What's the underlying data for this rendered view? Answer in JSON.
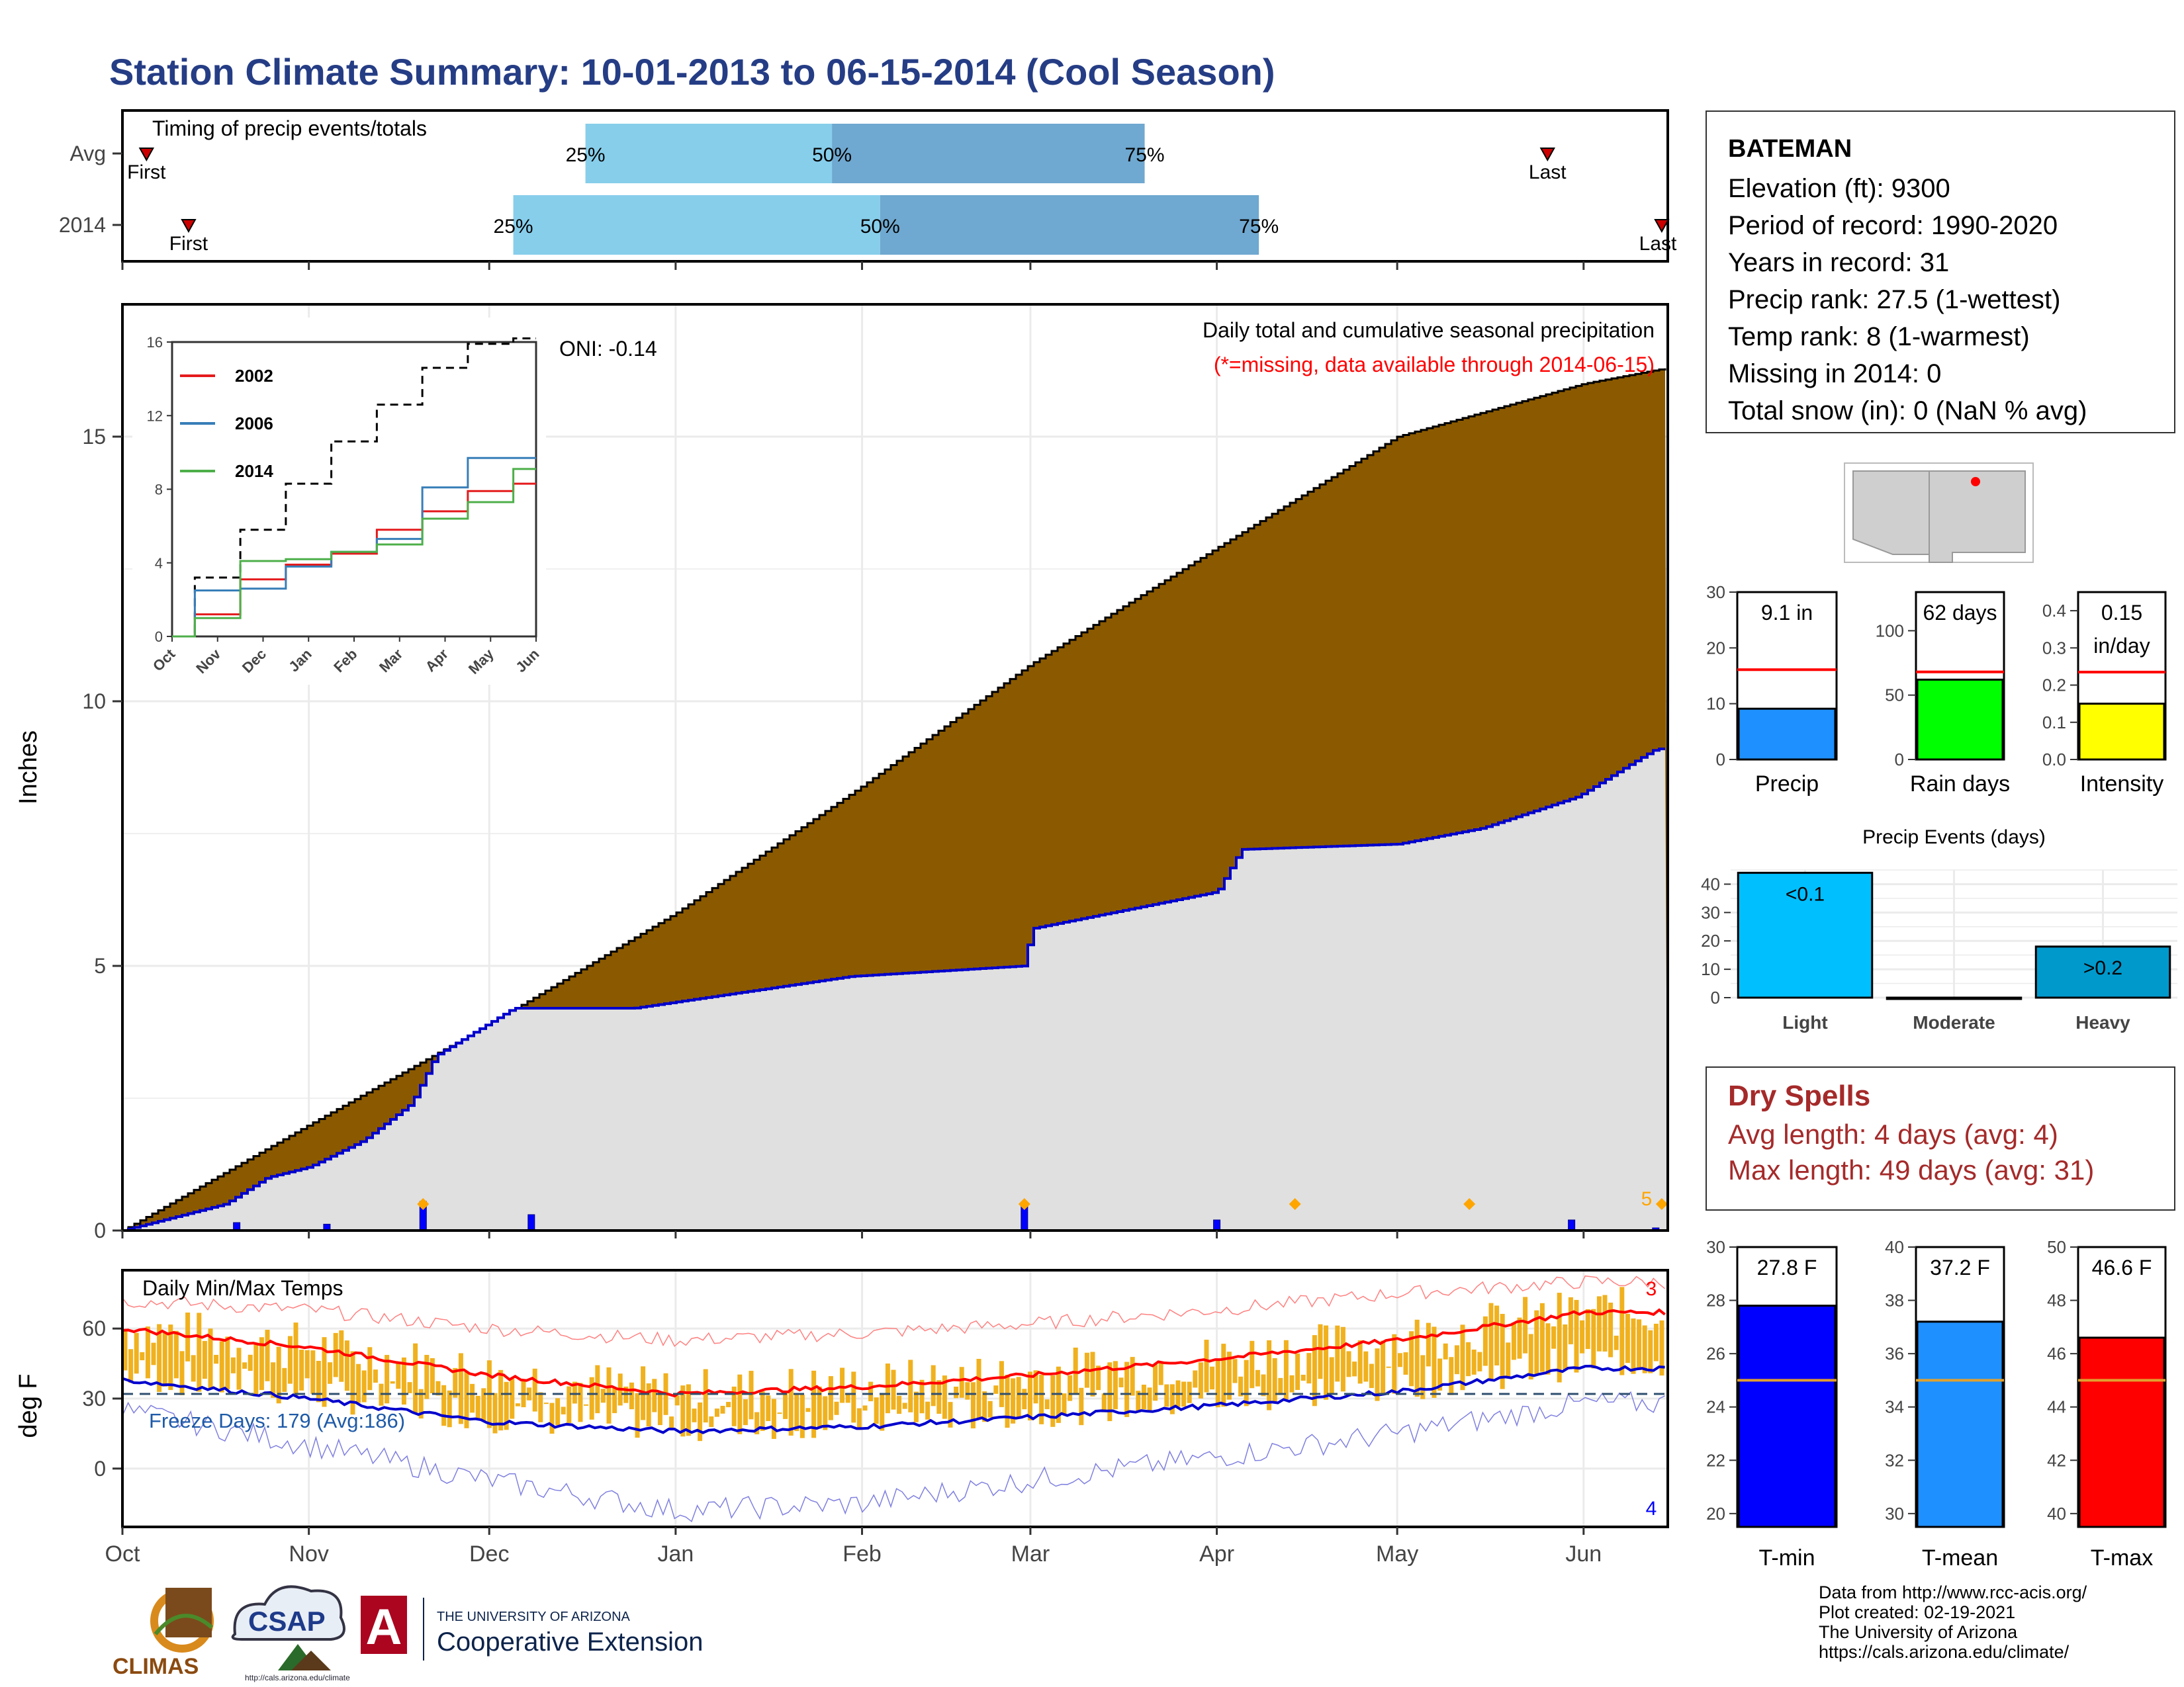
{
  "title": "Station Climate Summary: 10-01-2013 to 06-15-2014 (Cool Season)",
  "timing": {
    "label": "Timing of precip events/totals",
    "rows": [
      {
        "name": "Avg",
        "first": "2013-10-05",
        "p25": "2013-12-17",
        "p50": "2014-01-27",
        "p75": "2014-03-20",
        "last": "2014-05-26"
      },
      {
        "name": "2014",
        "first": "2013-10-12",
        "p25": "2013-12-05",
        "p50": "2014-02-04",
        "p75": "2014-04-08",
        "last": "2014-06-14"
      }
    ],
    "marker_labels": {
      "first": "First",
      "last": "Last",
      "p25": "25%",
      "p50": "50%",
      "p75": "75%"
    }
  },
  "main_panel": {
    "ylabel": "Inches",
    "annotation_title": "Daily total and cumulative seasonal precipitation",
    "annotation_missing": "(*=missing, data available through 2014-06-15)",
    "oni": "ONI: -0.14",
    "count_label": "5",
    "yticks": [
      "0",
      "5",
      "10",
      "15"
    ],
    "colors": {
      "avg_fill": "#8b5a00",
      "obs_fill": "#e0e0e0",
      "obs_line": "#0000cd",
      "bars": "#0000ff",
      "event": "#ffa500"
    }
  },
  "inset": {
    "xticks": [
      "Oct",
      "Nov",
      "Dec",
      "Jan",
      "Feb",
      "Mar",
      "Apr",
      "May",
      "Jun"
    ],
    "yticks": [
      "0",
      "4",
      "8",
      "12",
      "16"
    ],
    "legend": [
      {
        "name": "2002",
        "color": "#e41a1c"
      },
      {
        "name": "2006",
        "color": "#377eb8"
      },
      {
        "name": "2014",
        "color": "#4daf4a"
      }
    ]
  },
  "temp_panel": {
    "ylabel": "deg F",
    "title": "Daily Min/Max Temps",
    "freeze": "Freeze Days: 179 (Avg:186)",
    "count_top": "3",
    "count_bottom": "4",
    "yticks": [
      "0",
      "30",
      "60"
    ],
    "colors": {
      "bar": "#f0b11e",
      "max_avg": "#ff0000",
      "min_avg": "#0000cd",
      "max_rec": "#ff8080",
      "min_rec": "#8080e0"
    }
  },
  "x_months": [
    "Oct",
    "Nov",
    "Dec",
    "Jan",
    "Feb",
    "Mar",
    "Apr",
    "May",
    "Jun"
  ],
  "station": {
    "name": "BATEMAN",
    "lines": [
      "Elevation (ft): 9300",
      "Period of record: 1990-2020",
      "Years in record: 31",
      "Precip rank: 27.5 (1-wettest)",
      "Temp rank: 8 (1-warmest)",
      "Missing in 2014: 0",
      "Total snow (in): 0 (NaN % avg)"
    ]
  },
  "dry_spells": {
    "title": "Dry Spells",
    "avg": "Avg length: 4 days (avg: 4)",
    "max": "Max length: 49 days (avg: 31)",
    "color": "#a52a2a"
  },
  "precip_events_title": "Precip Events (days)",
  "footer": [
    "Data from http://www.rcc-acis.org/",
    "Plot created: 02-19-2021",
    "The University of Arizona",
    "https://cals.arizona.edu/climate/"
  ],
  "logos": {
    "climas": "CLIMAS",
    "csap": "CSAP",
    "csap_url": "http://cals.arizona.edu/climate",
    "ua_line1": "THE UNIVERSITY OF ARIZONA",
    "ua_line2": "Cooperative Extension",
    "ua_letter": "A"
  },
  "chart_data": [
    {
      "type": "area",
      "title": "Daily total and cumulative seasonal precipitation",
      "ylabel": "Inches",
      "ylim": [
        0,
        17.5
      ],
      "x_range": [
        "2013-10-01",
        "2014-06-15"
      ],
      "series": [
        {
          "name": "avg cumulative",
          "x": [
            "2013-10-01",
            "2013-11-01",
            "2013-12-01",
            "2014-01-01",
            "2014-02-01",
            "2014-03-01",
            "2014-04-01",
            "2014-05-01",
            "2014-06-01",
            "2014-06-15"
          ],
          "values": [
            0,
            2.0,
            3.9,
            6.0,
            8.4,
            10.7,
            12.9,
            15.0,
            16.0,
            16.3
          ]
        },
        {
          "name": "observed cumulative",
          "x": [
            "2013-10-01",
            "2013-10-18",
            "2013-10-25",
            "2013-11-01",
            "2013-11-10",
            "2013-11-18",
            "2013-11-22",
            "2013-12-05",
            "2013-12-25",
            "2014-01-30",
            "2014-02-28",
            "2014-03-01",
            "2014-04-01",
            "2014-04-05",
            "2014-05-01",
            "2014-05-15",
            "2014-05-31",
            "2014-06-10",
            "2014-06-13",
            "2014-06-15"
          ],
          "values": [
            0,
            0.5,
            1.0,
            1.2,
            1.7,
            2.4,
            3.3,
            4.2,
            4.2,
            4.8,
            5.0,
            5.7,
            6.4,
            7.2,
            7.3,
            7.6,
            8.2,
            8.9,
            9.1,
            9.1
          ]
        }
      ],
      "daily_bars": [
        {
          "x": "2013-10-20",
          "y": 0.15
        },
        {
          "x": "2013-11-04",
          "y": 0.12
        },
        {
          "x": "2013-11-20",
          "y": 0.55
        },
        {
          "x": "2013-12-08",
          "y": 0.3
        },
        {
          "x": "2014-02-28",
          "y": 0.5
        },
        {
          "x": "2014-04-01",
          "y": 0.2
        },
        {
          "x": "2014-05-30",
          "y": 0.2
        },
        {
          "x": "2014-06-13",
          "y": 0.05
        }
      ],
      "event_markers": [
        "2013-11-20",
        "2014-02-28",
        "2014-04-14",
        "2014-05-13",
        "2014-06-14"
      ]
    },
    {
      "type": "line",
      "title": "",
      "ylim": [
        0,
        16
      ],
      "x_range": [
        "2013-10-01",
        "2014-06-15"
      ],
      "series": [
        {
          "name": "avg",
          "values": [
            0,
            3.2,
            5.8,
            8.3,
            10.6,
            12.6,
            14.6,
            15.9,
            16.2
          ]
        },
        {
          "name": "2002",
          "values": [
            0,
            1.2,
            3.1,
            3.9,
            4.5,
            5.8,
            6.8,
            7.9,
            8.3
          ]
        },
        {
          "name": "2006",
          "values": [
            0,
            2.5,
            2.6,
            3.8,
            4.6,
            5.3,
            8.1,
            9.7,
            9.7
          ]
        },
        {
          "name": "2014",
          "values": [
            0,
            1.0,
            4.1,
            4.2,
            4.6,
            5.0,
            6.4,
            7.3,
            9.1
          ]
        }
      ],
      "categories": [
        "Oct",
        "Nov",
        "Dec",
        "Jan",
        "Feb",
        "Mar",
        "Apr",
        "May",
        "Jun"
      ]
    },
    {
      "type": "bar",
      "title": "Daily Min/Max Temps",
      "ylabel": "deg F",
      "ylim": [
        -25,
        85
      ],
      "avg_max": {
        "x": [
          "Oct",
          "Nov",
          "Dec",
          "Jan",
          "Feb",
          "Mar",
          "Apr",
          "May",
          "Jun"
        ],
        "values": [
          60,
          52,
          40,
          32,
          35,
          40,
          47,
          55,
          67
        ]
      },
      "avg_min": {
        "x": [
          "Oct",
          "Nov",
          "Dec",
          "Jan",
          "Feb",
          "Mar",
          "Apr",
          "May",
          "Jun"
        ],
        "values": [
          38,
          30,
          20,
          16,
          18,
          22,
          27,
          33,
          43
        ]
      },
      "record_max": {
        "x": [
          "Oct",
          "Nov",
          "Dec",
          "Jan",
          "Feb",
          "Mar",
          "Apr",
          "May",
          "Jun"
        ],
        "values": [
          72,
          68,
          60,
          55,
          58,
          62,
          68,
          75,
          80
        ]
      },
      "record_min": {
        "x": [
          "Oct",
          "Nov",
          "Dec",
          "Jan",
          "Feb",
          "Mar",
          "Apr",
          "May",
          "Jun"
        ],
        "values": [
          25,
          10,
          -5,
          -18,
          -15,
          -5,
          5,
          15,
          28
        ]
      },
      "freeze_line": 32
    },
    {
      "type": "bar",
      "title": "",
      "categories": [
        "Precip"
      ],
      "values": [
        9.1
      ],
      "average": 16.1,
      "ylim": [
        0,
        30
      ],
      "value_label": "9.1 in",
      "yticks": [
        "0",
        "10",
        "20",
        "30"
      ],
      "color": "#1e90ff"
    },
    {
      "type": "bar",
      "title": "",
      "categories": [
        "Rain days"
      ],
      "values": [
        62
      ],
      "average": 68,
      "ylim": [
        0,
        130
      ],
      "value_label": "62 days",
      "yticks": [
        "0",
        "50",
        "100"
      ],
      "color": "#00ff00"
    },
    {
      "type": "bar",
      "title": "",
      "categories": [
        "Intensity"
      ],
      "values": [
        0.15
      ],
      "average": 0.235,
      "ylim": [
        0,
        0.45
      ],
      "value_label": "0.15",
      "value_label2": "in/day",
      "yticks": [
        "0.0",
        "0.1",
        "0.2",
        "0.3",
        "0.4"
      ],
      "color": "#ffff00"
    },
    {
      "type": "bar",
      "title": "Precip Events (days)",
      "categories": [
        "Light",
        "Moderate",
        "Heavy"
      ],
      "values": [
        44,
        0,
        18
      ],
      "bar_labels": [
        "<0.1",
        "",
        ">0.2"
      ],
      "ylim": [
        0,
        45
      ],
      "yticks": [
        "0",
        "10",
        "20",
        "30",
        "40"
      ],
      "colors": [
        "#00bfff",
        "#00bfff",
        "#0099cc"
      ]
    },
    {
      "type": "bar",
      "title": "",
      "categories": [
        "T-min"
      ],
      "values": [
        27.8
      ],
      "average": 25.0,
      "ylim": [
        19.5,
        30
      ],
      "value_label": "27.8 F",
      "yticks": [
        "20",
        "22",
        "24",
        "26",
        "28",
        "30"
      ],
      "color": "#0000ff"
    },
    {
      "type": "bar",
      "title": "",
      "categories": [
        "T-mean"
      ],
      "values": [
        37.2
      ],
      "average": 35.0,
      "ylim": [
        29.5,
        40
      ],
      "value_label": "37.2 F",
      "yticks": [
        "30",
        "32",
        "34",
        "36",
        "38",
        "40"
      ],
      "color": "#1e90ff"
    },
    {
      "type": "bar",
      "title": "",
      "categories": [
        "T-max"
      ],
      "values": [
        46.6
      ],
      "average": 45.0,
      "ylim": [
        39.5,
        50
      ],
      "value_label": "46.6 F",
      "yticks": [
        "40",
        "42",
        "44",
        "46",
        "48",
        "50"
      ],
      "color": "#ff0000"
    }
  ]
}
